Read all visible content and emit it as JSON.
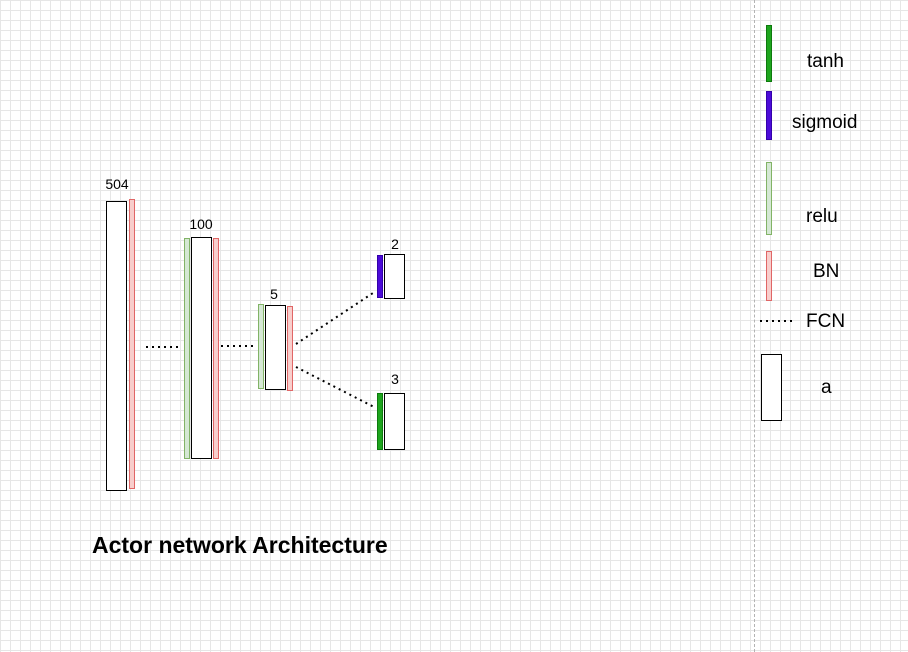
{
  "diagram": {
    "title": "Actor network Architecture",
    "layers": [
      {
        "size_label": "504",
        "activation": "",
        "batch_norm": true
      },
      {
        "size_label": "100",
        "activation": "relu",
        "batch_norm": true
      },
      {
        "size_label": "5",
        "activation": "relu",
        "batch_norm": true
      },
      {
        "size_label": "2",
        "activation": "sigmoid",
        "batch_norm": false
      },
      {
        "size_label": "3",
        "activation": "tanh",
        "batch_norm": false
      }
    ]
  },
  "legend": {
    "tanh": "tanh",
    "sigmoid": "sigmoid",
    "relu": "relu",
    "bn": "BN",
    "fcn": "FCN",
    "a": "a"
  },
  "colors": {
    "tanh": "#1ea51e",
    "sigmoid": "#4c0bd8",
    "relu": "#d5e8d4",
    "bn": "#f8cecc"
  }
}
